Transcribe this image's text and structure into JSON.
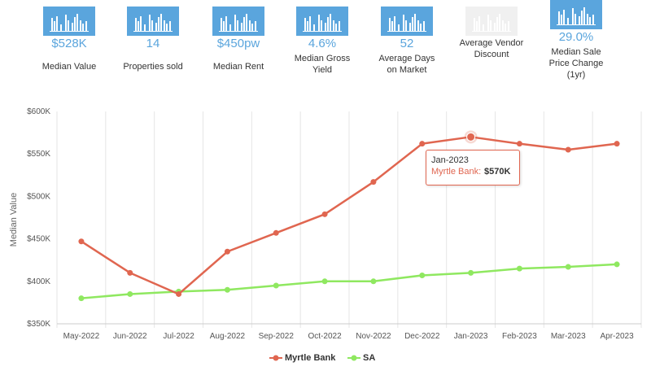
{
  "stats": [
    {
      "value": "$528K",
      "label": "Median Value",
      "enabled": true
    },
    {
      "value": "14",
      "label": "Properties sold",
      "enabled": true
    },
    {
      "value": "$450pw",
      "label": "Median Rent",
      "enabled": true
    },
    {
      "value": "4.6%",
      "label_lines": [
        "Median Gross",
        "Yield"
      ],
      "enabled": true
    },
    {
      "value": "52",
      "label_lines": [
        "Average Days",
        "on Market"
      ],
      "enabled": true
    },
    {
      "value": "",
      "label_lines": [
        "Average Vendor",
        "Discount"
      ],
      "enabled": false
    },
    {
      "value": "29.0%",
      "label_lines": [
        "Median Sale",
        "Price Change",
        "(1yr)"
      ],
      "enabled": true
    }
  ],
  "chart_data": {
    "type": "line",
    "categories": [
      "May-2022",
      "Jun-2022",
      "Jul-2022",
      "Aug-2022",
      "Sep-2022",
      "Oct-2022",
      "Nov-2022",
      "Dec-2022",
      "Jan-2023",
      "Feb-2023",
      "Mar-2023",
      "Apr-2023"
    ],
    "series": [
      {
        "name": "Myrtle Bank",
        "color": "#e06650",
        "values": [
          447000,
          410000,
          385000,
          435000,
          457000,
          479000,
          517000,
          562000,
          570000,
          562000,
          555000,
          562000
        ]
      },
      {
        "name": "SA",
        "color": "#8fe860",
        "values": [
          380000,
          385000,
          388000,
          390000,
          395000,
          400000,
          400000,
          407000,
          410000,
          415000,
          417000,
          420000
        ]
      }
    ],
    "ylabel": "Median Value",
    "ylim": [
      350000,
      600000
    ],
    "yticks": [
      350000,
      400000,
      450000,
      500000,
      550000,
      600000
    ],
    "ytick_labels": [
      "$350K",
      "$400K",
      "$450K",
      "$500K",
      "$550K",
      "$600K"
    ],
    "legend": "bottom-center",
    "grid": "vertical"
  },
  "tooltip": {
    "date": "Jan-2023",
    "series": "Myrtle Bank:",
    "value": "$570K"
  }
}
